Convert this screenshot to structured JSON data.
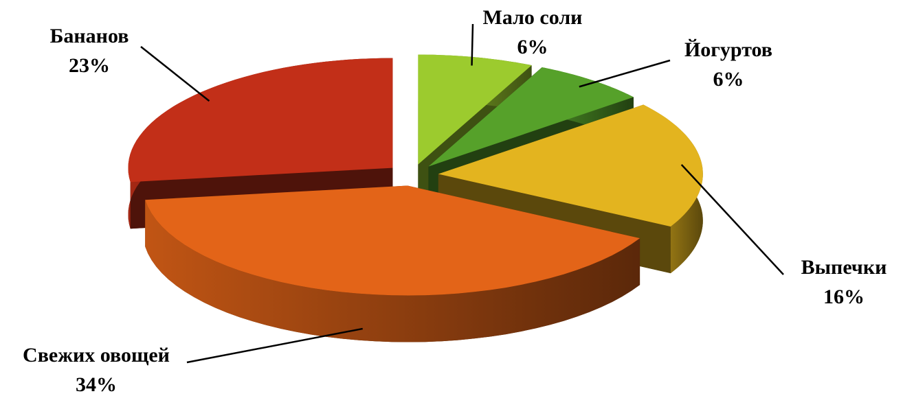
{
  "chart_data": {
    "type": "pie3d",
    "categories": [
      "Мало соли",
      "Йогуртов",
      "Выпечки",
      "Свежих овощей",
      "Бананов"
    ],
    "values": [
      6,
      6,
      16,
      34,
      23
    ],
    "value_labels": [
      "6%",
      "6%",
      "16%",
      "34%",
      "23%"
    ],
    "colors": [
      "#9ccb2e",
      "#56a12a",
      "#e3b41f",
      "#e36418",
      "#c22f18"
    ]
  }
}
